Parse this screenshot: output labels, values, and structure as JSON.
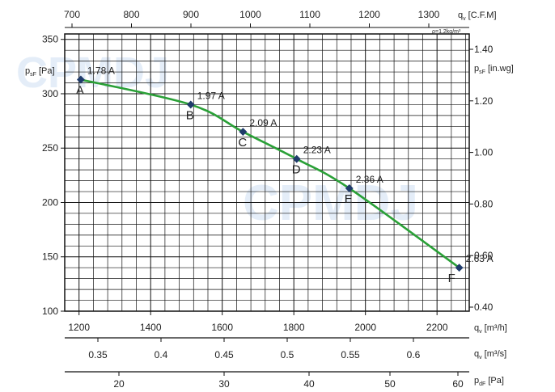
{
  "chart_data": {
    "type": "line",
    "title": "",
    "watermark": "CPMDJ",
    "left_axis": {
      "label_main": "p",
      "label_sub": "sF",
      "label_unit": "[Pa]",
      "ticks": [
        100,
        150,
        200,
        250,
        300,
        350
      ],
      "range": [
        100,
        355
      ]
    },
    "right_axis": {
      "label_main": "p",
      "label_sub": "sF",
      "label_unit": "[in.wg]",
      "ticks": [
        "0.40",
        "0.60",
        "0.80",
        "1.00",
        "1.20",
        "1.40"
      ]
    },
    "top_axis": {
      "label_main": "q",
      "label_sub": "v",
      "label_unit": "[C.F.M]",
      "ticks": [
        700,
        800,
        900,
        1000,
        1100,
        1200,
        1300
      ],
      "note": "ρ=1.2kg/m³"
    },
    "bottom_axis": {
      "label_main": "q",
      "label_sub": "v",
      "label_unit": "[m³/h]",
      "ticks": [
        1200,
        1400,
        1600,
        1800,
        2000,
        2200
      ],
      "range": [
        1160,
        2290
      ]
    },
    "axis_m3s": {
      "label_main": "q",
      "label_sub": "v",
      "label_unit": "[m³/s]",
      "ticks": [
        "0.35",
        "0.4",
        "0.45",
        "0.5",
        "0.55",
        "0.6"
      ]
    },
    "axis_pdf": {
      "label_main": "p",
      "label_sub": "dF",
      "label_unit": "[Pa]",
      "ticks": [
        20,
        30,
        40,
        50,
        60
      ]
    },
    "series": [
      {
        "color": "#2aa037",
        "points": [
          {
            "x": 1205,
            "y": 313,
            "label": "A",
            "current": "1.78 A"
          },
          {
            "x": 1512,
            "y": 290,
            "label": "B",
            "current": "1.97 A"
          },
          {
            "x": 1658,
            "y": 265,
            "label": "C",
            "current": "2.09 A"
          },
          {
            "x": 1808,
            "y": 240,
            "label": "D",
            "current": "2.23 A"
          },
          {
            "x": 1955,
            "y": 213,
            "label": "E",
            "current": "2.36 A"
          },
          {
            "x": 2262,
            "y": 140,
            "label": "F",
            "current": "2.63 A"
          }
        ]
      }
    ],
    "grid": true
  }
}
